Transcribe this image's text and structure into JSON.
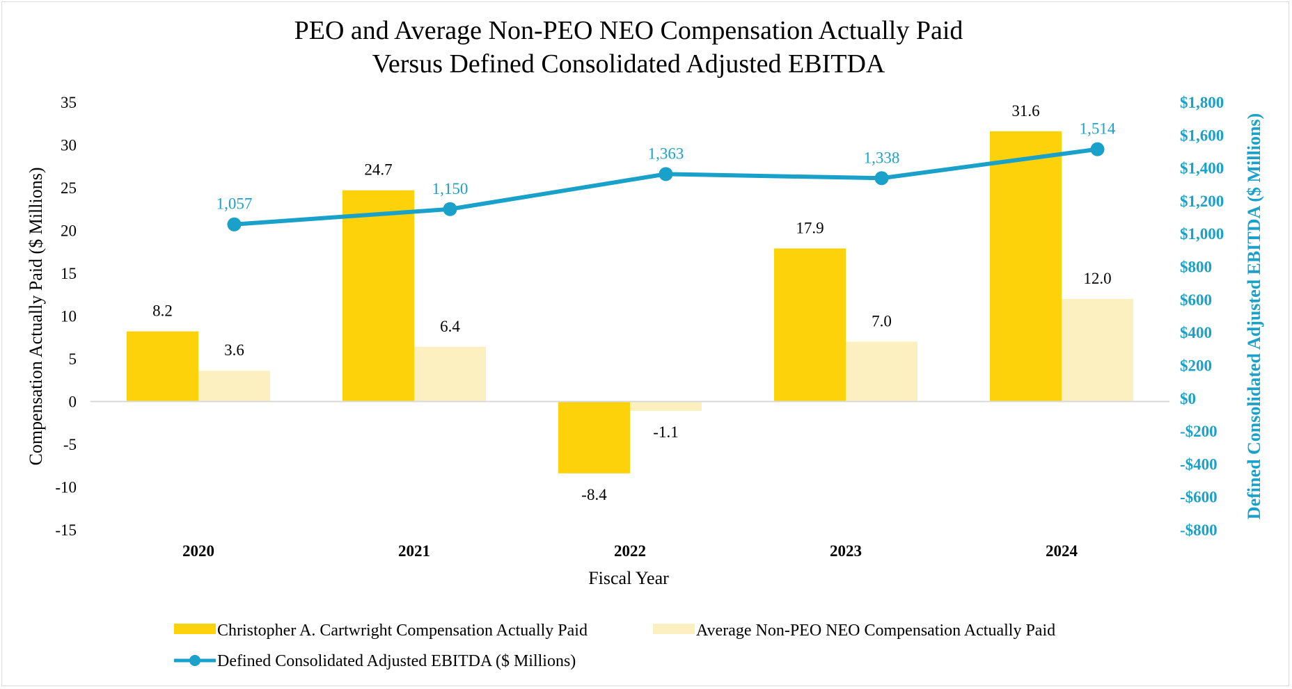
{
  "chart_data": {
    "type": "bar",
    "title_lines": [
      "PEO and Average Non-PEO NEO Compensation Actually Paid",
      "Versus Defined Consolidated Adjusted EBITDA"
    ],
    "xlabel": "Fiscal Year",
    "ylabel": "Compensation Actually Paid ($ Millions)",
    "y2label": "Defined Consolidated Adjusted EBITDA ($ Millions)",
    "categories": [
      "2020",
      "2021",
      "2022",
      "2023",
      "2024"
    ],
    "ylim": [
      -15,
      35
    ],
    "yticks": [
      35,
      30,
      25,
      20,
      15,
      10,
      5,
      0,
      -5,
      -10,
      -15
    ],
    "ytick_labels": [
      "35",
      "30",
      "25",
      "20",
      "15",
      "10",
      "5",
      "0",
      "-5",
      "-10",
      "-15"
    ],
    "y2lim": [
      -800,
      1800
    ],
    "y2ticks": [
      1800,
      1600,
      1400,
      1200,
      1000,
      800,
      600,
      400,
      200,
      0,
      -200,
      -400,
      -600,
      -800
    ],
    "y2tick_labels": [
      "$1,800",
      "$1,600",
      "$1,400",
      "$1,200",
      "$1,000",
      "$800",
      "$600",
      "$400",
      "$200",
      "$0",
      "-$200",
      "-$400",
      "-$600",
      "-$800"
    ],
    "series": [
      {
        "name": "Christopher A. Cartwright Compensation Actually Paid",
        "kind": "bar",
        "axis": "left",
        "color": "#fdd20a",
        "values": [
          8.2,
          24.7,
          -8.4,
          17.9,
          31.6
        ],
        "labels": [
          "8.2",
          "24.7",
          "-8.4",
          "17.9",
          "31.6"
        ]
      },
      {
        "name": "Average Non-PEO NEO Compensation Actually Paid",
        "kind": "bar",
        "axis": "left",
        "color": "#fdf0c0",
        "values": [
          3.6,
          6.4,
          -1.1,
          7.0,
          12.0
        ],
        "labels": [
          "3.6",
          "6.4",
          "-1.1",
          "7.0",
          "12.0"
        ]
      },
      {
        "name": "Defined Consolidated Adjusted EBITDA ($ Millions)",
        "kind": "line",
        "axis": "right",
        "color": "#1aa1c9",
        "values": [
          1057,
          1150,
          1363,
          1338,
          1514
        ],
        "labels": [
          "1,057",
          "1,150",
          "1,363",
          "1,338",
          "1,514"
        ]
      }
    ],
    "legend_position": "bottom"
  }
}
